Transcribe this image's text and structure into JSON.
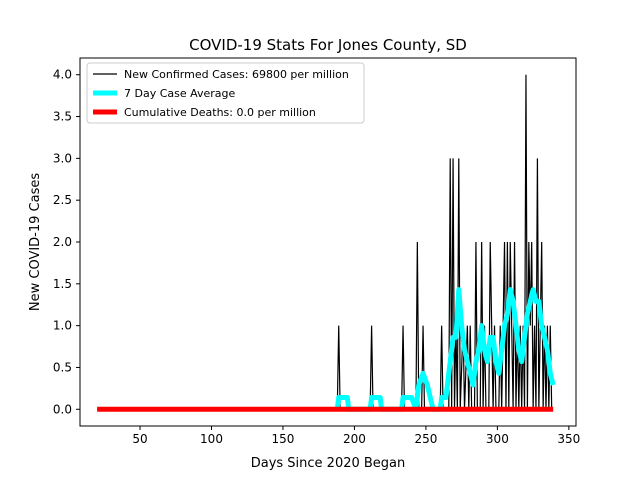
{
  "chart_data": {
    "type": "line",
    "title": "COVID-19 Stats For Jones County, SD",
    "xlabel": "Days Since 2020 Began",
    "ylabel": "New COVID-19 Cases",
    "xlim": [
      8,
      355
    ],
    "ylim": [
      -0.2,
      4.2
    ],
    "x_ticks": [
      50,
      100,
      150,
      200,
      250,
      300,
      350
    ],
    "y_ticks": [
      0.0,
      0.5,
      1.0,
      1.5,
      2.0,
      2.5,
      3.0,
      3.5,
      4.0
    ],
    "grid": false,
    "legend_position": "upper-left",
    "series": [
      {
        "name": "New Confirmed Cases: 69800 per million",
        "color": "#000000",
        "points": [
          [
            20,
            0
          ],
          [
            188,
            0
          ],
          [
            189,
            1
          ],
          [
            190,
            0
          ],
          [
            211,
            0
          ],
          [
            212,
            1
          ],
          [
            213,
            0
          ],
          [
            233,
            0
          ],
          [
            234,
            1
          ],
          [
            235,
            0
          ],
          [
            243,
            0
          ],
          [
            244,
            2
          ],
          [
            245,
            0
          ],
          [
            247,
            0
          ],
          [
            248,
            1
          ],
          [
            249,
            0
          ],
          [
            260,
            0
          ],
          [
            261,
            1
          ],
          [
            262,
            0
          ],
          [
            266,
            0
          ],
          [
            267,
            3
          ],
          [
            268,
            0
          ],
          [
            269,
            3
          ],
          [
            270,
            0
          ],
          [
            271,
            1
          ],
          [
            272,
            0
          ],
          [
            273,
            3
          ],
          [
            274,
            0
          ],
          [
            276,
            1
          ],
          [
            277,
            0
          ],
          [
            279,
            1
          ],
          [
            280,
            0
          ],
          [
            281,
            1
          ],
          [
            282,
            0
          ],
          [
            284,
            0
          ],
          [
            285,
            2
          ],
          [
            286,
            0
          ],
          [
            288,
            0
          ],
          [
            289,
            2
          ],
          [
            290,
            0
          ],
          [
            291,
            1
          ],
          [
            292,
            0
          ],
          [
            294,
            0
          ],
          [
            295,
            2
          ],
          [
            296,
            1
          ],
          [
            297,
            0
          ],
          [
            298,
            1
          ],
          [
            299,
            0
          ],
          [
            301,
            0
          ],
          [
            302,
            1
          ],
          [
            303,
            0
          ],
          [
            305,
            2
          ],
          [
            306,
            0
          ],
          [
            307,
            2
          ],
          [
            308,
            0
          ],
          [
            309,
            2
          ],
          [
            310,
            1
          ],
          [
            311,
            0
          ],
          [
            312,
            2
          ],
          [
            313,
            0
          ],
          [
            314,
            1
          ],
          [
            315,
            0
          ],
          [
            316,
            1
          ],
          [
            317,
            0
          ],
          [
            318,
            1
          ],
          [
            319,
            0
          ],
          [
            320,
            4
          ],
          [
            321,
            0
          ],
          [
            322,
            2
          ],
          [
            323,
            1
          ],
          [
            324,
            2
          ],
          [
            325,
            0
          ],
          [
            326,
            1
          ],
          [
            327,
            0
          ],
          [
            328,
            3
          ],
          [
            329,
            0
          ],
          [
            330,
            1
          ],
          [
            331,
            2
          ],
          [
            332,
            0
          ],
          [
            333,
            1
          ],
          [
            334,
            0
          ],
          [
            335,
            1
          ],
          [
            336,
            0
          ],
          [
            337,
            1
          ],
          [
            338,
            0
          ],
          [
            339,
            0
          ]
        ]
      },
      {
        "name": "7 Day Case Average",
        "color": "#00ffff",
        "points": [
          [
            188,
            0
          ],
          [
            189,
            0.14
          ],
          [
            195,
            0.14
          ],
          [
            196,
            0
          ],
          [
            211,
            0
          ],
          [
            212,
            0.14
          ],
          [
            218,
            0.14
          ],
          [
            219,
            0
          ],
          [
            233,
            0
          ],
          [
            234,
            0.14
          ],
          [
            240,
            0.14
          ],
          [
            243,
            0
          ],
          [
            245,
            0.29
          ],
          [
            248,
            0.43
          ],
          [
            251,
            0.29
          ],
          [
            255,
            0
          ],
          [
            260,
            0
          ],
          [
            261,
            0.14
          ],
          [
            264,
            0.14
          ],
          [
            267,
            0.57
          ],
          [
            269,
            0.86
          ],
          [
            271,
            0.86
          ],
          [
            273,
            1.43
          ],
          [
            275,
            1.0
          ],
          [
            277,
            0.71
          ],
          [
            279,
            0.57
          ],
          [
            281,
            0.43
          ],
          [
            283,
            0.29
          ],
          [
            285,
            0.57
          ],
          [
            287,
            0.71
          ],
          [
            289,
            1.0
          ],
          [
            291,
            0.71
          ],
          [
            293,
            0.57
          ],
          [
            295,
            0.86
          ],
          [
            297,
            0.86
          ],
          [
            299,
            0.57
          ],
          [
            301,
            0.43
          ],
          [
            303,
            0.71
          ],
          [
            305,
            1.0
          ],
          [
            307,
            1.14
          ],
          [
            309,
            1.43
          ],
          [
            311,
            1.29
          ],
          [
            313,
            1.0
          ],
          [
            315,
            0.71
          ],
          [
            317,
            0.57
          ],
          [
            319,
            0.86
          ],
          [
            321,
            1.14
          ],
          [
            323,
            1.29
          ],
          [
            325,
            1.43
          ],
          [
            327,
            1.29
          ],
          [
            329,
            1.29
          ],
          [
            331,
            1.0
          ],
          [
            333,
            0.86
          ],
          [
            335,
            0.71
          ],
          [
            337,
            0.43
          ],
          [
            339,
            0.29
          ]
        ]
      },
      {
        "name": "Cumulative Deaths: 0.0 per million",
        "color": "#ff0000",
        "points": [
          [
            20,
            0
          ],
          [
            339,
            0
          ]
        ]
      }
    ]
  }
}
